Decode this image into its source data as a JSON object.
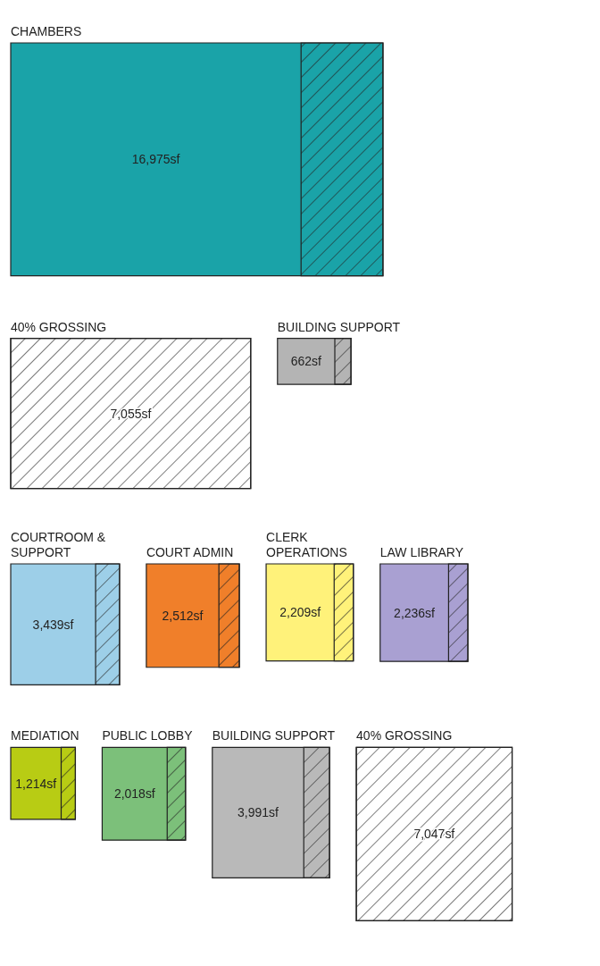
{
  "chart_data": [
    {
      "type": "other",
      "categories": [
        "CHAMBERS",
        "40% GROSSING",
        "BUILDING SUPPORT"
      ],
      "values": [
        16975,
        7055,
        662
      ],
      "value_labels": [
        "16,975sf",
        "7,055sf",
        "662sf"
      ],
      "colors": [
        "#1aa3a8",
        null,
        "#b4b4b4"
      ]
    },
    {
      "type": "other",
      "categories": [
        "COURTROOM & SUPPORT",
        "COURT ADMIN",
        "CLERK OPERATIONS",
        "LAW LIBRARY",
        "MEDIATION",
        "PUBLIC LOBBY",
        "BUILDING SUPPORT",
        "40% GROSSING"
      ],
      "values": [
        3439,
        2512,
        2209,
        2236,
        1214,
        2018,
        3991,
        7047
      ],
      "value_labels": [
        "3,439sf",
        "2,512sf",
        "2,209sf",
        "2,236sf",
        "1,214sf",
        "2,018sf",
        "3,991sf",
        "7,047sf"
      ],
      "colors": [
        "#9dcfe8",
        "#f07f2a",
        "#fff27a",
        "#a9a0d2",
        "#b8cc14",
        "#7cc07a",
        "#b9b9b9",
        null
      ]
    }
  ]
}
